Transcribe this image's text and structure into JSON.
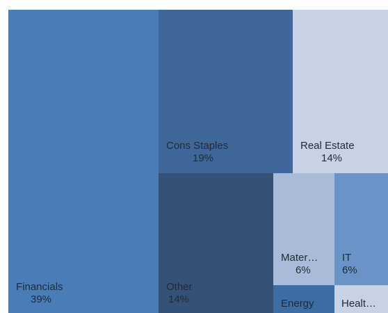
{
  "chart_data": {
    "type": "treemap",
    "tiles": [
      {
        "id": "financials",
        "name": "Financials",
        "value": "39%",
        "color": "#4a7db8"
      },
      {
        "id": "cons-staples",
        "name": "Cons Staples",
        "value": "19%",
        "color": "#3f6799"
      },
      {
        "id": "real-estate",
        "name": "Real Estate",
        "value": "14%",
        "color": "#c7d2e5"
      },
      {
        "id": "other",
        "name": "Other",
        "value": "14%",
        "color": "#345178"
      },
      {
        "id": "materials",
        "name": "Mater…",
        "value": "6%",
        "color": "#a9bbd9"
      },
      {
        "id": "it",
        "name": "IT",
        "value": "6%",
        "color": "#6a93c7"
      },
      {
        "id": "energy",
        "name": "Energy",
        "value": "",
        "color": "#3d6da4"
      },
      {
        "id": "health",
        "name": "Healt…",
        "value": "",
        "color": "#c7d2e5"
      }
    ]
  }
}
